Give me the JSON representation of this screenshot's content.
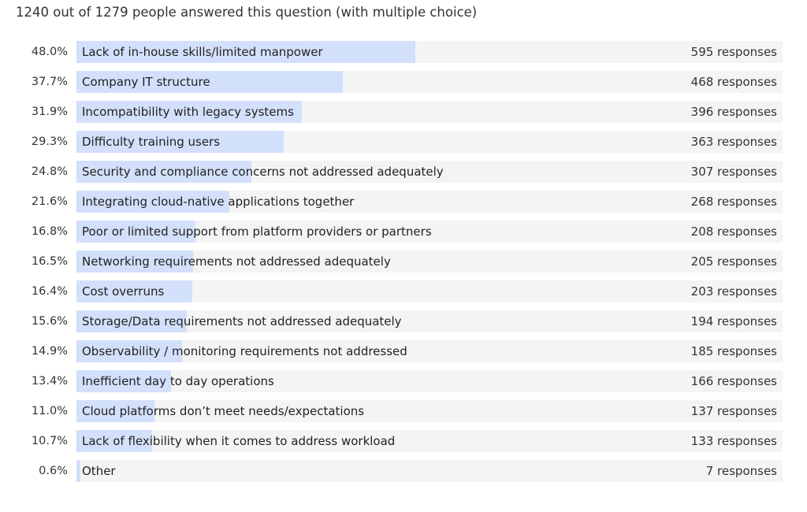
{
  "summary": "1240 out of 1279 people answered this question (with multiple choice)",
  "colors": {
    "bar_fill": "#d3e0fb",
    "track": "#f4f4f4"
  },
  "chart_data": {
    "type": "bar",
    "orientation": "horizontal",
    "title": "",
    "xlabel": "",
    "ylabel": "",
    "xlim": [
      0,
      100
    ],
    "grid": false,
    "categories": [
      "Lack of in-house skills/limited manpower",
      "Company IT structure",
      "Incompatibility with legacy systems",
      "Difficulty training users",
      "Security and compliance concerns not addressed adequately",
      "Integrating cloud-native applications together",
      "Poor or limited support from platform providers or partners",
      "Networking requirements not addressed adequately",
      "Cost overruns",
      "Storage/Data requirements not addressed adequately",
      "Observability / monitoring requirements not addressed",
      "Inefficient day to day operations",
      "Cloud platforms don’t meet needs/expectations",
      "Lack of flexibility when it comes to address workload",
      "Other"
    ],
    "values": [
      48.0,
      37.7,
      31.9,
      29.3,
      24.8,
      21.6,
      16.8,
      16.5,
      16.4,
      15.6,
      14.9,
      13.4,
      11.0,
      10.7,
      0.6
    ],
    "value_labels": [
      "48.0%",
      "37.7%",
      "31.9%",
      "29.3%",
      "24.8%",
      "21.6%",
      "16.8%",
      "16.5%",
      "16.4%",
      "15.6%",
      "14.9%",
      "13.4%",
      "11.0%",
      "10.7%",
      "0.6%"
    ],
    "responses": [
      595,
      468,
      396,
      363,
      307,
      268,
      208,
      205,
      203,
      194,
      185,
      166,
      137,
      133,
      7
    ],
    "response_labels": [
      "595 responses",
      "468 responses",
      "396 responses",
      "363 responses",
      "307 responses",
      "268 responses",
      "208 responses",
      "205 responses",
      "203 responses",
      "194 responses",
      "185 responses",
      "166 responses",
      "137 responses",
      "133 responses",
      "7 responses"
    ]
  }
}
